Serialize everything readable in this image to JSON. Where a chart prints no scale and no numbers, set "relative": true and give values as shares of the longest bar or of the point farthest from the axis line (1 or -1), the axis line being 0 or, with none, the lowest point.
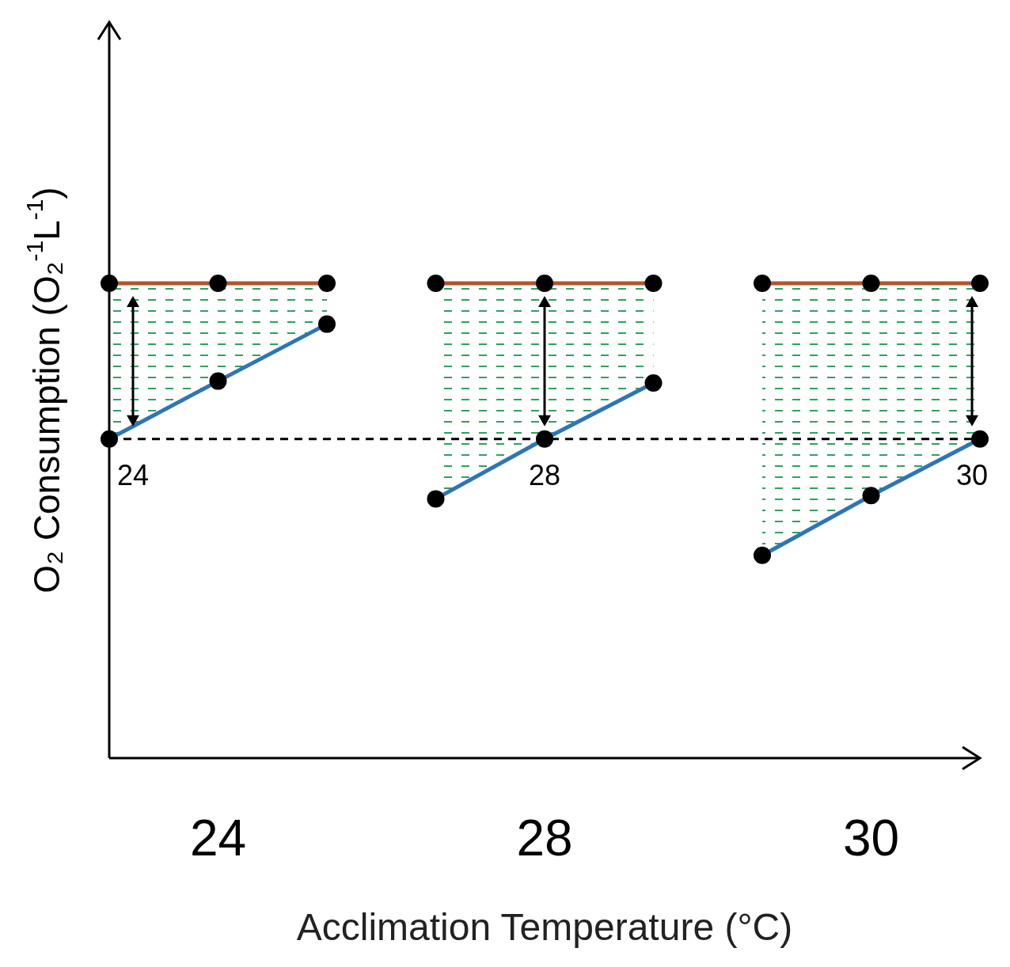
{
  "chart_data": {
    "type": "line",
    "relative": true,
    "xlabel": "Acclimation Temperature (°C)",
    "ylabel": "O₂ Consumption (O₂$^{-1}$L$^{-1}$)",
    "categories": [
      null,
      "24",
      null,
      null,
      "28",
      null,
      null,
      "30",
      null
    ],
    "series": [
      {
        "color": "#b5542c",
        "values": [
          1,
          1,
          1,
          null,
          null,
          null,
          null,
          null,
          null
        ]
      },
      {
        "color": "#2e75b6",
        "values": [
          0.672,
          0.794,
          0.914,
          null,
          null,
          null,
          null,
          null,
          null
        ],
        "lower": [
          0.672,
          0.794,
          0.914,
          null,
          null,
          null,
          null,
          null,
          null
        ],
        "upper": [
          1,
          1,
          1,
          null,
          null,
          null,
          null,
          null,
          null
        ]
      },
      {
        "color": "#b5542c",
        "values": [
          null,
          null,
          null,
          1,
          1,
          1,
          null,
          null,
          null
        ]
      },
      {
        "color": "#2e75b6",
        "values": [
          null,
          null,
          null,
          0.546,
          0.672,
          0.79,
          null,
          null,
          null
        ],
        "lower": [
          null,
          null,
          null,
          0.546,
          0.672,
          0.79,
          null,
          null,
          null
        ],
        "upper": [
          null,
          null,
          null,
          1,
          1,
          1,
          null,
          null,
          null
        ]
      },
      {
        "color": "#b5542c",
        "values": [
          null,
          null,
          null,
          null,
          null,
          null,
          1,
          1,
          1
        ]
      },
      {
        "color": "#2e75b6",
        "values": [
          null,
          null,
          null,
          null,
          null,
          null,
          0.427,
          0.553,
          0.672
        ],
        "lower": [
          null,
          null,
          null,
          null,
          null,
          null,
          0.427,
          0.553,
          0.672
        ],
        "upper": [
          null,
          null,
          null,
          null,
          null,
          null,
          1,
          1,
          1
        ]
      }
    ],
    "marker": "circle",
    "line_style": "solid",
    "ref_lines": [
      {
        "axis": "y",
        "value": 0.672,
        "color": "#000000",
        "line_style": "dashed"
      }
    ],
    "annotations": [
      "24",
      "28",
      "30"
    ]
  }
}
